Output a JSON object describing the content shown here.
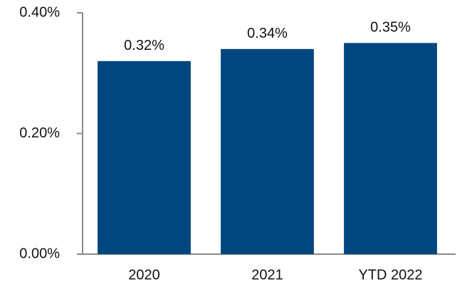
{
  "chart_data": {
    "type": "bar",
    "categories": [
      "2020",
      "2021",
      "YTD 2022"
    ],
    "values": [
      0.32,
      0.34,
      0.35
    ],
    "value_labels": [
      "0.32%",
      "0.34%",
      "0.35%"
    ],
    "color": "#00467f",
    "ylim": [
      0,
      0.4
    ],
    "yticks": [
      {
        "value": 0,
        "label": "0.00%"
      },
      {
        "value": 0.2,
        "label": "0.20%"
      },
      {
        "value": 0.4,
        "label": "0.40%"
      }
    ],
    "grid": false
  }
}
